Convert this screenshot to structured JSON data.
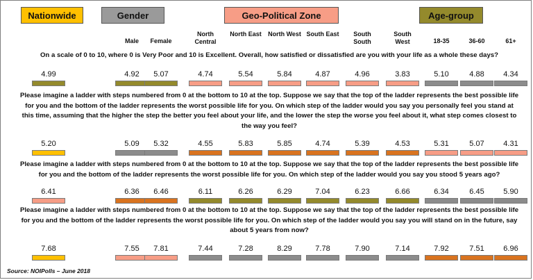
{
  "headers": {
    "nationwide": "Nationwide",
    "gender": "Gender",
    "geo": "Geo-Political Zone",
    "age": "Age-group"
  },
  "colors": {
    "nationwide": "#FFC000",
    "gender": "#948A54",
    "geo": "#F79D86",
    "age": "#948A2C",
    "orange": "#D9731F",
    "salmon": "#F79D86",
    "olive": "#948A2C",
    "gray": "#8C8C8C",
    "border": "#7A7A7A"
  },
  "columns": [
    "Male",
    "Female",
    "North Central",
    "North East",
    "North West",
    "South East",
    "South South",
    "South West",
    "18-35",
    "36-60",
    "61+"
  ],
  "questions": [
    {
      "text": "On a scale of 0 to 10, where 0 is Very Poor and 10 is Excellent. Overall, how satisfied or dissatisfied are you with your life as a whole these days?",
      "nationwide": "4.99",
      "values": [
        "4.92",
        "5.07",
        "4.74",
        "5.54",
        "5.84",
        "4.87",
        "4.96",
        "3.83",
        "5.10",
        "4.88",
        "4.34"
      ]
    },
    {
      "text": "Please imagine a ladder with steps numbered from 0 at the bottom to 10 at the top. Suppose we say that the top of the ladder represents the best possible life for you and the bottom of the ladder represents the worst possible life for you. On which step of the ladder would you say you personally feel you stand at this time, assuming that the higher the step the better you feel about your life, and the lower the step the worse you feel about it, what step comes closest to the way you feel?",
      "nationwide": "5.20",
      "values": [
        "5.09",
        "5.32",
        "4.55",
        "5.83",
        "5.85",
        "4.74",
        "5.39",
        "4.53",
        "5.31",
        "5.07",
        "4.31"
      ]
    },
    {
      "text": "Please imagine a ladder with steps numbered from 0 at the bottom to 10 at the top. Suppose we say that the top of the ladder represents the best possible life for you and the bottom of the ladder represents the worst possible life for you. On which step of the ladder would you say you stood 5 years ago?",
      "nationwide": "6.41",
      "values": [
        "6.36",
        "6.46",
        "6.11",
        "6.26",
        "6.29",
        "7.04",
        "6.23",
        "6.66",
        "6.34",
        "6.45",
        "5.90"
      ]
    },
    {
      "text": "Please imagine a ladder with steps numbered from 0 at the bottom to 10 at the top. Suppose we say that the top of the ladder represents the best possible life for you and the bottom of the ladder represents the worst possible life for you. On which step of the ladder would you say you will stand on in the future, say about 5 years from now?",
      "nationwide": "7.68",
      "values": [
        "7.55",
        "7.81",
        "7.44",
        "7.28",
        "8.29",
        "7.78",
        "7.90",
        "7.14",
        "7.92",
        "7.51",
        "6.96"
      ]
    }
  ],
  "source": "Source: NOIPolls – June 2018"
}
